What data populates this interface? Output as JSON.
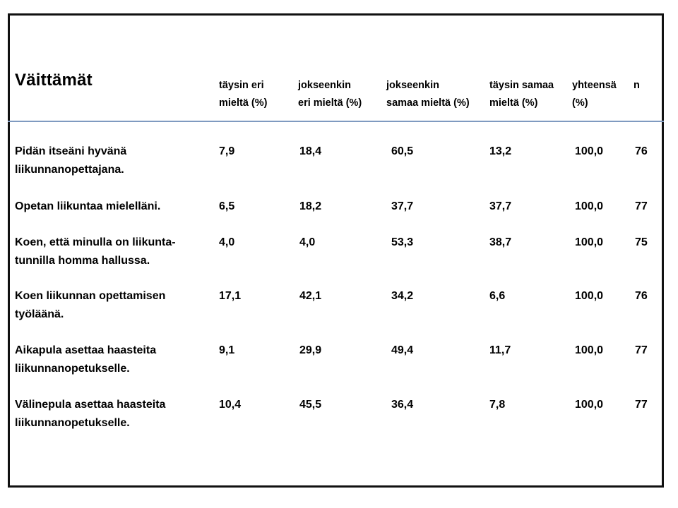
{
  "chart_data": {
    "type": "table",
    "title": "Väittämät",
    "columns": [
      [
        "täysin eri",
        "mieltä (%)"
      ],
      [
        "jokseenkin",
        "eri mieltä (%)"
      ],
      [
        "jokseenkin",
        "samaa mieltä (%)"
      ],
      [
        "täysin samaa",
        "mieltä (%)"
      ],
      [
        "yhteensä",
        "(%)"
      ],
      [
        "n",
        ""
      ]
    ],
    "rows": [
      {
        "statement": [
          "Pidän itseäni hyvänä",
          "liikunnanopettajana."
        ],
        "values": [
          "7,9",
          "18,4",
          "60,5",
          "13,2",
          "100,0",
          "76"
        ]
      },
      {
        "statement": [
          "Opetan liikuntaa  mielelläni.",
          ""
        ],
        "values": [
          "6,5",
          "18,2",
          "37,7",
          "37,7",
          "100,0",
          "77"
        ]
      },
      {
        "statement": [
          "Koen, että minulla on liikunta-",
          "tunnilla  homma hallussa."
        ],
        "values": [
          "4,0",
          "4,0",
          "53,3",
          "38,7",
          "100,0",
          "75"
        ]
      },
      {
        "statement": [
          "Koen liikunnan  opettamisen",
          "työläänä."
        ],
        "values": [
          "17,1",
          "42,1",
          "34,2",
          "6,6",
          "100,0",
          "76"
        ]
      },
      {
        "statement": [
          "Aikapula asettaa haasteita",
          "liikunnanopetukselle."
        ],
        "values": [
          "9,1",
          "29,9",
          "49,4",
          "11,7",
          "100,0",
          "77"
        ]
      },
      {
        "statement": [
          "Välinepula  asettaa haasteita",
          "liikunnanopetukselle."
        ],
        "values": [
          "10,4",
          "45,5",
          "36,4",
          "7,8",
          "100,0",
          "77"
        ]
      }
    ]
  },
  "colors": {
    "frame": "#111111",
    "rule": "#7f9ac0",
    "text": "#000000"
  }
}
